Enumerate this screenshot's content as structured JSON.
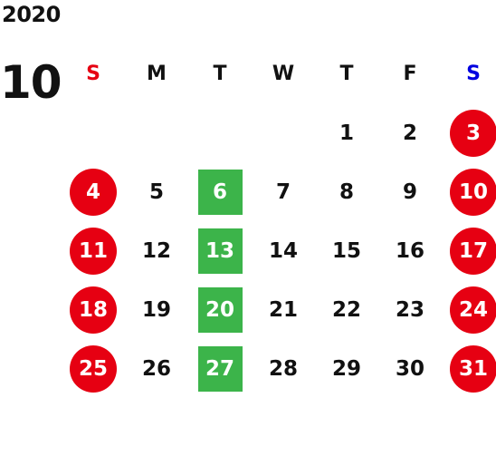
{
  "calendar": {
    "year": "2020",
    "month": "10",
    "weekdays": [
      "S",
      "M",
      "T",
      "W",
      "T",
      "F",
      "S"
    ],
    "weeks": [
      [
        "",
        "",
        "",
        "",
        "1",
        "2",
        "3"
      ],
      [
        "4",
        "5",
        "6",
        "7",
        "8",
        "9",
        "10"
      ],
      [
        "11",
        "12",
        "13",
        "14",
        "15",
        "16",
        "17"
      ],
      [
        "18",
        "19",
        "20",
        "21",
        "22",
        "23",
        "24"
      ],
      [
        "25",
        "26",
        "27",
        "28",
        "29",
        "30",
        "31"
      ]
    ]
  },
  "colors": {
    "text": "#111111",
    "sunday_label": "#e60012",
    "saturday_label": "#0000e0",
    "holiday_circle": "#e60012",
    "highlight_square": "#3cb44a"
  }
}
